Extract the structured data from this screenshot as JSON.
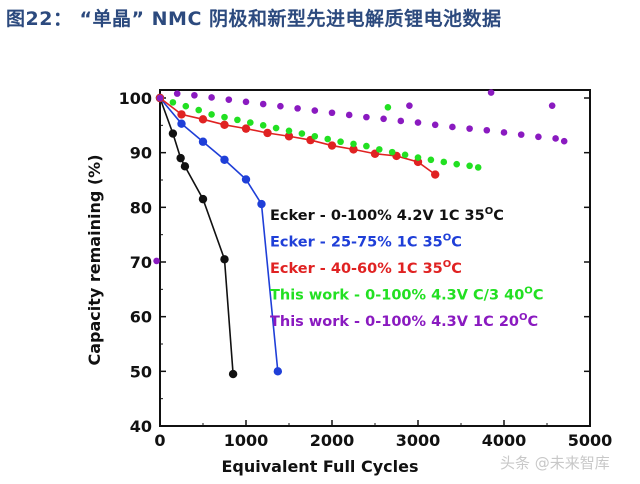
{
  "figure": {
    "title": "图22：  “单晶”  NMC 阴极和新型先进电解质锂电池数据"
  },
  "watermark": "头条 @未来智库",
  "colors": {
    "black": "#111111",
    "blue": "#1f3fd8",
    "red": "#e02222",
    "green": "#22e022",
    "purple": "#8a1ac0"
  },
  "chart_data": {
    "type": "scatter",
    "xlabel": "Equivalent Full Cycles",
    "ylabel": "Capacity remaining (%)",
    "xlim": [
      0,
      5000
    ],
    "ylim": [
      40,
      100
    ],
    "xticks": [
      0,
      1000,
      2000,
      3000,
      4000,
      5000
    ],
    "yticks": [
      40,
      50,
      60,
      70,
      80,
      90,
      100
    ],
    "legend_placement": "right-center",
    "series": [
      {
        "name": "Ecker - 0-100% 4.2V 1C 35",
        "superscript": "O",
        "suffix": "C",
        "color": "#111111",
        "style": "line+marker",
        "points": [
          [
            0,
            100
          ],
          [
            150,
            93.5
          ],
          [
            240,
            89
          ],
          [
            290,
            87.5
          ],
          [
            500,
            81.5
          ],
          [
            750,
            70.5
          ],
          [
            850,
            49.5
          ]
        ]
      },
      {
        "name": "Ecker - 25-75% 1C 35",
        "superscript": "O",
        "suffix": "C",
        "color": "#1f3fd8",
        "style": "line+marker",
        "points": [
          [
            0,
            100
          ],
          [
            250,
            95.3
          ],
          [
            500,
            92
          ],
          [
            750,
            88.7
          ],
          [
            1000,
            85.1
          ],
          [
            1180,
            80.6
          ],
          [
            1370,
            50
          ]
        ]
      },
      {
        "name": "Ecker - 40-60% 1C 35",
        "superscript": "O",
        "suffix": "C",
        "color": "#e02222",
        "style": "line+marker",
        "points": [
          [
            0,
            100
          ],
          [
            250,
            97
          ],
          [
            500,
            96.1
          ],
          [
            750,
            95.1
          ],
          [
            1000,
            94.4
          ],
          [
            1250,
            93.6
          ],
          [
            1500,
            93
          ],
          [
            1750,
            92.3
          ],
          [
            2000,
            91.3
          ],
          [
            2250,
            90.6
          ],
          [
            2500,
            89.8
          ],
          [
            2750,
            89.4
          ],
          [
            3000,
            88.3
          ],
          [
            3200,
            86
          ]
        ]
      },
      {
        "name": "This work - 0-100% 4.3V C/3 40",
        "superscript": "O",
        "suffix": "C",
        "color": "#22e022",
        "style": "marker",
        "points": [
          [
            0,
            100
          ],
          [
            150,
            99.2
          ],
          [
            300,
            98.5
          ],
          [
            450,
            97.8
          ],
          [
            600,
            97
          ],
          [
            750,
            96.5
          ],
          [
            900,
            96
          ],
          [
            1050,
            95.5
          ],
          [
            1200,
            95
          ],
          [
            1350,
            94.5
          ],
          [
            1500,
            94
          ],
          [
            1650,
            93.5
          ],
          [
            1800,
            93
          ],
          [
            1950,
            92.5
          ],
          [
            2100,
            92
          ],
          [
            2250,
            91.6
          ],
          [
            2400,
            91.2
          ],
          [
            2550,
            90.6
          ],
          [
            2700,
            90.1
          ],
          [
            2850,
            89.6
          ],
          [
            3000,
            89.1
          ],
          [
            3150,
            88.7
          ],
          [
            3300,
            88.3
          ],
          [
            3450,
            87.9
          ],
          [
            3600,
            87.6
          ],
          [
            3700,
            87.3
          ],
          [
            2650,
            98.3
          ]
        ]
      },
      {
        "name": "This work - 0-100% 4.3V 1C 20",
        "superscript": "O",
        "suffix": "C",
        "color": "#8a1ac0",
        "style": "marker",
        "points": [
          [
            -40,
            70.2
          ],
          [
            0,
            100
          ],
          [
            200,
            100.8
          ],
          [
            400,
            100.5
          ],
          [
            600,
            100.1
          ],
          [
            800,
            99.7
          ],
          [
            1000,
            99.3
          ],
          [
            1200,
            98.9
          ],
          [
            1400,
            98.5
          ],
          [
            1600,
            98.1
          ],
          [
            1800,
            97.7
          ],
          [
            2000,
            97.3
          ],
          [
            2200,
            96.9
          ],
          [
            2400,
            96.5
          ],
          [
            2600,
            96.2
          ],
          [
            2800,
            95.8
          ],
          [
            3000,
            95.5
          ],
          [
            3200,
            95.1
          ],
          [
            3400,
            94.7
          ],
          [
            3600,
            94.4
          ],
          [
            3800,
            94.1
          ],
          [
            4000,
            93.7
          ],
          [
            4200,
            93.3
          ],
          [
            4400,
            92.9
          ],
          [
            4600,
            92.6
          ],
          [
            4700,
            92.1
          ],
          [
            2900,
            98.6
          ],
          [
            3850,
            101
          ],
          [
            4560,
            98.6
          ]
        ]
      }
    ]
  }
}
